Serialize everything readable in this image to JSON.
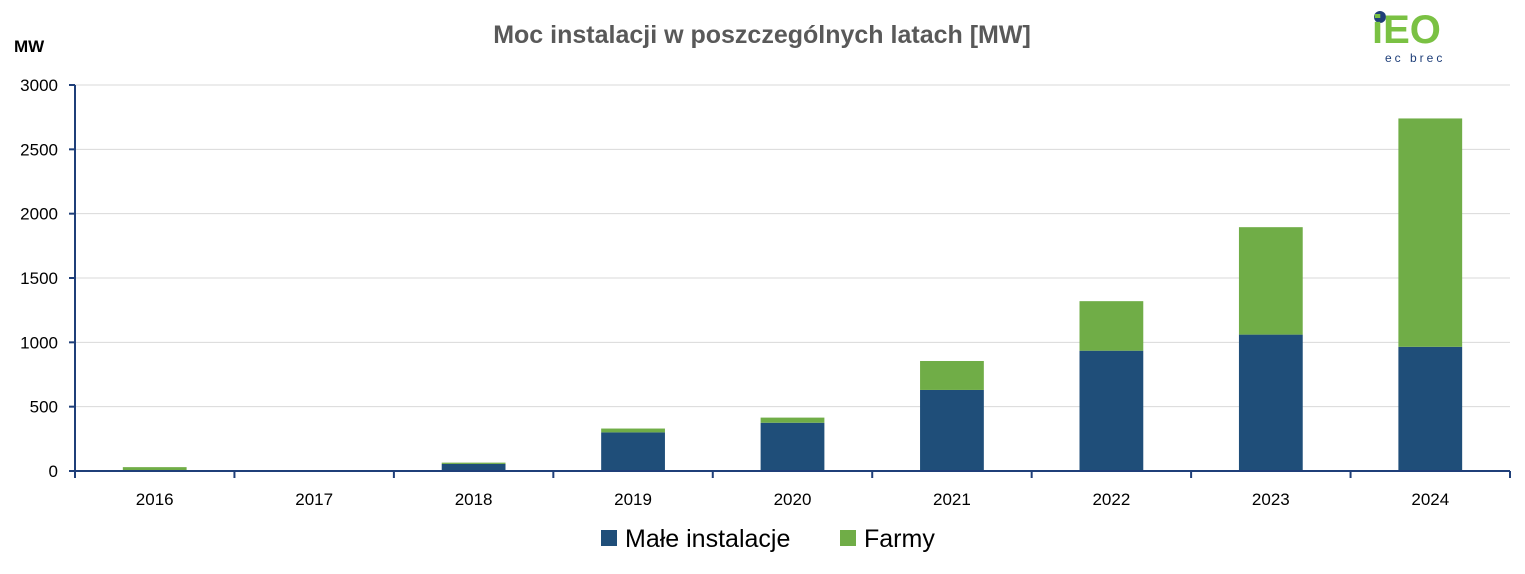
{
  "logo": {
    "text": "iEO",
    "subtext": "ec brec",
    "color_green": "#7ac143",
    "color_blue": "#1f3f79"
  },
  "chart_data": {
    "type": "bar",
    "stacked": true,
    "title": "Moc instalacji w poszczególnych latach [MW]",
    "ylabel": "MW",
    "xlabel": "",
    "ylim": [
      0,
      3000
    ],
    "yticks": [
      0,
      500,
      1000,
      1500,
      2000,
      2500,
      3000
    ],
    "grid": true,
    "legend_position": "bottom",
    "categories": [
      "2016",
      "2017",
      "2018",
      "2019",
      "2020",
      "2021",
      "2022",
      "2023",
      "2024"
    ],
    "series": [
      {
        "name": "Małe instalacje",
        "color": "#1f4e79",
        "values": [
          5,
          0,
          55,
          300,
          375,
          630,
          935,
          1060,
          965
        ]
      },
      {
        "name": "Farmy",
        "color": "#70ad47",
        "values": [
          25,
          0,
          10,
          30,
          40,
          225,
          385,
          835,
          1775
        ]
      }
    ]
  }
}
